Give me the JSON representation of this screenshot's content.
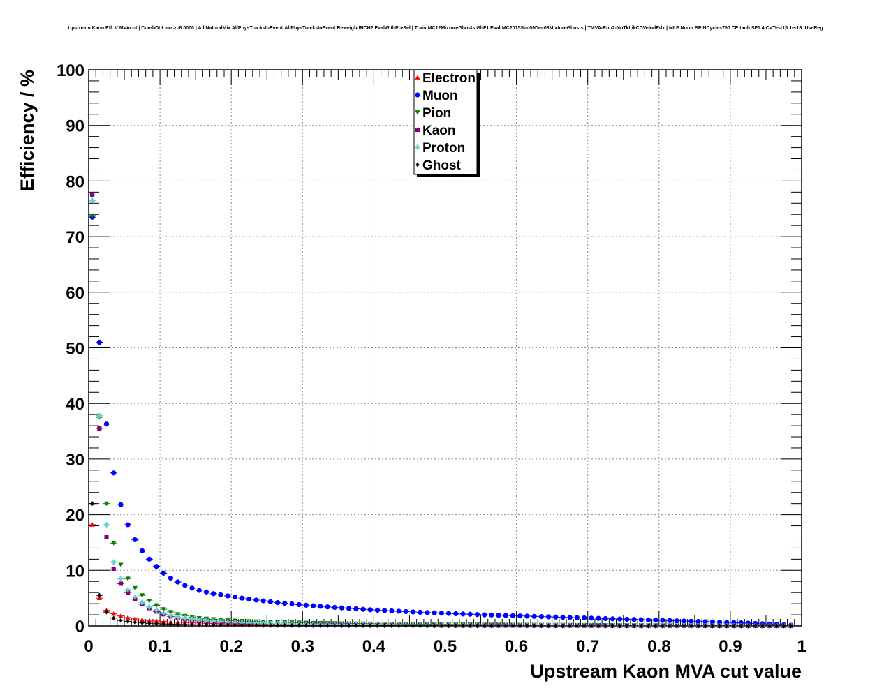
{
  "chart_data": {
    "type": "scatter",
    "title": "Upstream Kaon Eff. V MVAcut | CombDLLmu > -8.0000 | All NaturalMix AllPhysTracksInEvent:AllPhysTracksInEvent ReweightRICH2 EvalWithPreSel | Train:MC12MixtureGhosts GhF1 Eval:MC2015Sim09Dev03MixtureGhosts | TMVA-Run2-NoTkLikCDVelodEdx | MLP Norm BP NCycles750 CE tanh SF1.4 CVTest15:1e-16 !UseReg",
    "xlabel": "Upstream Kaon MVA cut value",
    "ylabel": "Efficiency / %",
    "xlim": [
      0,
      1
    ],
    "ylim": [
      0,
      100
    ],
    "grid": true,
    "legend_position": "top-center",
    "x_ticks": [
      "0",
      "0.1",
      "0.2",
      "0.3",
      "0.4",
      "0.5",
      "0.6",
      "0.7",
      "0.8",
      "0.9",
      "1"
    ],
    "y_ticks": [
      "0",
      "10",
      "20",
      "30",
      "40",
      "50",
      "60",
      "70",
      "80",
      "90",
      "100"
    ],
    "x": [
      0.005,
      0.015,
      0.025,
      0.035,
      0.045,
      0.055,
      0.065,
      0.075,
      0.085,
      0.095,
      0.105,
      0.115,
      0.125,
      0.135,
      0.145,
      0.155,
      0.165,
      0.175,
      0.185,
      0.195,
      0.205,
      0.215,
      0.225,
      0.235,
      0.245,
      0.255,
      0.265,
      0.275,
      0.285,
      0.295,
      0.305,
      0.315,
      0.325,
      0.335,
      0.345,
      0.355,
      0.365,
      0.375,
      0.385,
      0.395,
      0.405,
      0.415,
      0.425,
      0.435,
      0.445,
      0.455,
      0.465,
      0.475,
      0.485,
      0.495,
      0.505,
      0.515,
      0.525,
      0.535,
      0.545,
      0.555,
      0.565,
      0.575,
      0.585,
      0.595,
      0.605,
      0.615,
      0.625,
      0.635,
      0.645,
      0.655,
      0.665,
      0.675,
      0.685,
      0.695,
      0.705,
      0.715,
      0.725,
      0.735,
      0.745,
      0.755,
      0.765,
      0.775,
      0.785,
      0.795,
      0.805,
      0.815,
      0.825,
      0.835,
      0.845,
      0.855,
      0.865,
      0.875,
      0.885,
      0.895,
      0.905,
      0.915,
      0.925,
      0.935,
      0.945,
      0.955,
      0.965,
      0.975,
      0.985
    ],
    "series": [
      {
        "name": "Electron",
        "marker": "triangle-up",
        "color": "#ff0000",
        "values": [
          18.2,
          5.0,
          2.8,
          2.2,
          1.8,
          1.5,
          1.3,
          1.1,
          1.0,
          0.9,
          0.8,
          0.7,
          0.65,
          0.6,
          0.55,
          0.5,
          0.47,
          0.44,
          0.41,
          0.38,
          0.35,
          0.33,
          0.31,
          0.29,
          0.27,
          0.25,
          0.24,
          0.23,
          0.22,
          0.21,
          0.2,
          0.19,
          0.18,
          0.17,
          0.16,
          0.15,
          0.15,
          0.14,
          0.14,
          0.13,
          0.13,
          0.12,
          0.12,
          0.11,
          0.11,
          0.1,
          0.1,
          0.1,
          0.09,
          0.09,
          0.09,
          0.08,
          0.08,
          0.08,
          0.08,
          0.07,
          0.07,
          0.07,
          0.07,
          0.06,
          0.06,
          0.06,
          0.06,
          0.06,
          0.05,
          0.05,
          0.05,
          0.05,
          0.05,
          0.05,
          0.04,
          0.04,
          0.04,
          0.04,
          0.04,
          0.04,
          0.04,
          0.03,
          0.03,
          0.03,
          0.03,
          0.03,
          0.03,
          0.03,
          0.03,
          0.02,
          0.02,
          0.02,
          0.02,
          0.02,
          0.02,
          0.02,
          0.02,
          0.02,
          0.01,
          0.01,
          0.01,
          0.01,
          0.01
        ]
      },
      {
        "name": "Muon",
        "marker": "circle",
        "color": "#0000ff",
        "values": [
          73.5,
          51.0,
          36.3,
          27.5,
          21.8,
          18.2,
          15.5,
          13.5,
          12.0,
          10.7,
          9.5,
          8.6,
          7.9,
          7.3,
          6.8,
          6.4,
          6.1,
          5.8,
          5.6,
          5.4,
          5.2,
          5.0,
          4.8,
          4.65,
          4.5,
          4.35,
          4.2,
          4.07,
          3.95,
          3.83,
          3.72,
          3.62,
          3.52,
          3.42,
          3.33,
          3.24,
          3.15,
          3.07,
          2.99,
          2.91,
          2.84,
          2.77,
          2.7,
          2.64,
          2.58,
          2.52,
          2.46,
          2.4,
          2.35,
          2.3,
          2.25,
          2.2,
          2.15,
          2.1,
          2.05,
          2.0,
          1.96,
          1.92,
          1.88,
          1.84,
          1.8,
          1.76,
          1.72,
          1.68,
          1.64,
          1.6,
          1.56,
          1.52,
          1.48,
          1.44,
          1.4,
          1.36,
          1.32,
          1.28,
          1.24,
          1.2,
          1.16,
          1.12,
          1.08,
          1.04,
          1.0,
          0.96,
          0.92,
          0.88,
          0.84,
          0.8,
          0.76,
          0.72,
          0.68,
          0.64,
          0.6,
          0.55,
          0.5,
          0.45,
          0.4,
          0.34,
          0.28,
          0.2,
          0.12
        ]
      },
      {
        "name": "Pion",
        "marker": "triangle-down",
        "color": "#008000",
        "values": [
          73.8,
          37.5,
          22.0,
          14.9,
          11.0,
          8.5,
          6.8,
          5.5,
          4.5,
          3.7,
          3.0,
          2.5,
          2.1,
          1.8,
          1.6,
          1.4,
          1.3,
          1.2,
          1.1,
          1.0,
          0.95,
          0.9,
          0.85,
          0.8,
          0.76,
          0.72,
          0.68,
          0.65,
          0.62,
          0.59,
          0.56,
          0.54,
          0.52,
          0.5,
          0.48,
          0.46,
          0.44,
          0.43,
          0.42,
          0.4,
          0.39,
          0.38,
          0.37,
          0.36,
          0.35,
          0.34,
          0.33,
          0.32,
          0.31,
          0.3,
          0.29,
          0.28,
          0.27,
          0.26,
          0.25,
          0.24,
          0.24,
          0.23,
          0.22,
          0.22,
          0.21,
          0.2,
          0.2,
          0.19,
          0.18,
          0.18,
          0.17,
          0.17,
          0.16,
          0.16,
          0.15,
          0.15,
          0.14,
          0.14,
          0.13,
          0.13,
          0.12,
          0.12,
          0.11,
          0.11,
          0.1,
          0.1,
          0.09,
          0.09,
          0.08,
          0.08,
          0.07,
          0.07,
          0.06,
          0.06,
          0.05,
          0.05,
          0.04,
          0.04,
          0.03,
          0.03,
          0.02,
          0.02,
          0.01
        ]
      },
      {
        "name": "Kaon",
        "marker": "square",
        "color": "#800080",
        "values": [
          77.5,
          35.5,
          16.0,
          10.2,
          7.6,
          6.0,
          4.8,
          3.9,
          3.2,
          2.6,
          2.1,
          1.7,
          1.4,
          1.2,
          1.0,
          0.9,
          0.8,
          0.72,
          0.65,
          0.58,
          0.52,
          0.47,
          0.43,
          0.4,
          0.37,
          0.34,
          0.32,
          0.3,
          0.28,
          0.26,
          0.25,
          0.24,
          0.23,
          0.22,
          0.21,
          0.2,
          0.19,
          0.18,
          0.17,
          0.17,
          0.16,
          0.15,
          0.15,
          0.14,
          0.14,
          0.13,
          0.13,
          0.12,
          0.12,
          0.11,
          0.11,
          0.1,
          0.1,
          0.1,
          0.09,
          0.09,
          0.09,
          0.08,
          0.08,
          0.08,
          0.07,
          0.07,
          0.07,
          0.07,
          0.06,
          0.06,
          0.06,
          0.06,
          0.05,
          0.05,
          0.05,
          0.05,
          0.05,
          0.04,
          0.04,
          0.04,
          0.04,
          0.04,
          0.03,
          0.03,
          0.03,
          0.03,
          0.03,
          0.03,
          0.02,
          0.02,
          0.02,
          0.02,
          0.02,
          0.02,
          0.02,
          0.01,
          0.01,
          0.01,
          0.01,
          0.01,
          0.01,
          0.01,
          0.01
        ]
      },
      {
        "name": "Proton",
        "marker": "cross",
        "color": "#66cccc",
        "values": [
          76.5,
          37.8,
          18.2,
          11.5,
          8.5,
          6.5,
          5.2,
          4.2,
          3.4,
          2.8,
          2.3,
          1.9,
          1.6,
          1.4,
          1.2,
          1.05,
          0.95,
          0.85,
          0.77,
          0.7,
          0.64,
          0.58,
          0.53,
          0.49,
          0.45,
          0.42,
          0.39,
          0.36,
          0.34,
          0.32,
          0.3,
          0.28,
          0.27,
          0.26,
          0.25,
          0.24,
          0.23,
          0.22,
          0.21,
          0.2,
          0.19,
          0.18,
          0.18,
          0.17,
          0.16,
          0.16,
          0.15,
          0.15,
          0.14,
          0.14,
          0.13,
          0.13,
          0.12,
          0.12,
          0.11,
          0.11,
          0.11,
          0.1,
          0.1,
          0.1,
          0.09,
          0.09,
          0.09,
          0.08,
          0.08,
          0.08,
          0.07,
          0.07,
          0.07,
          0.07,
          0.06,
          0.06,
          0.06,
          0.06,
          0.05,
          0.05,
          0.05,
          0.05,
          0.04,
          0.04,
          0.04,
          0.04,
          0.03,
          0.03,
          0.03,
          0.03,
          0.03,
          0.02,
          0.02,
          0.02,
          0.02,
          0.02,
          0.01,
          0.01,
          0.01,
          0.01,
          0.01,
          0.01,
          0.01
        ]
      },
      {
        "name": "Ghost",
        "marker": "diamond",
        "color": "#000000",
        "values": [
          22.0,
          5.5,
          2.5,
          1.4,
          1.0,
          0.8,
          0.65,
          0.55,
          0.47,
          0.4,
          0.35,
          0.3,
          0.27,
          0.24,
          0.22,
          0.2,
          0.18,
          0.17,
          0.16,
          0.15,
          0.14,
          0.13,
          0.12,
          0.12,
          0.11,
          0.11,
          0.1,
          0.1,
          0.09,
          0.09,
          0.09,
          0.08,
          0.08,
          0.08,
          0.07,
          0.07,
          0.07,
          0.07,
          0.06,
          0.06,
          0.06,
          0.06,
          0.06,
          0.05,
          0.05,
          0.05,
          0.05,
          0.05,
          0.05,
          0.04,
          0.04,
          0.04,
          0.04,
          0.04,
          0.04,
          0.04,
          0.03,
          0.03,
          0.03,
          0.03,
          0.03,
          0.03,
          0.03,
          0.03,
          0.03,
          0.02,
          0.02,
          0.02,
          0.02,
          0.02,
          0.02,
          0.02,
          0.02,
          0.02,
          0.02,
          0.02,
          0.02,
          0.01,
          0.01,
          0.01,
          0.01,
          0.01,
          0.01,
          0.01,
          0.01,
          0.01,
          0.01,
          0.01,
          0.01,
          0.01,
          0.01,
          0.01,
          0.01,
          0.01,
          0.01,
          0.01,
          0.01,
          0.01,
          0.01
        ]
      }
    ]
  }
}
